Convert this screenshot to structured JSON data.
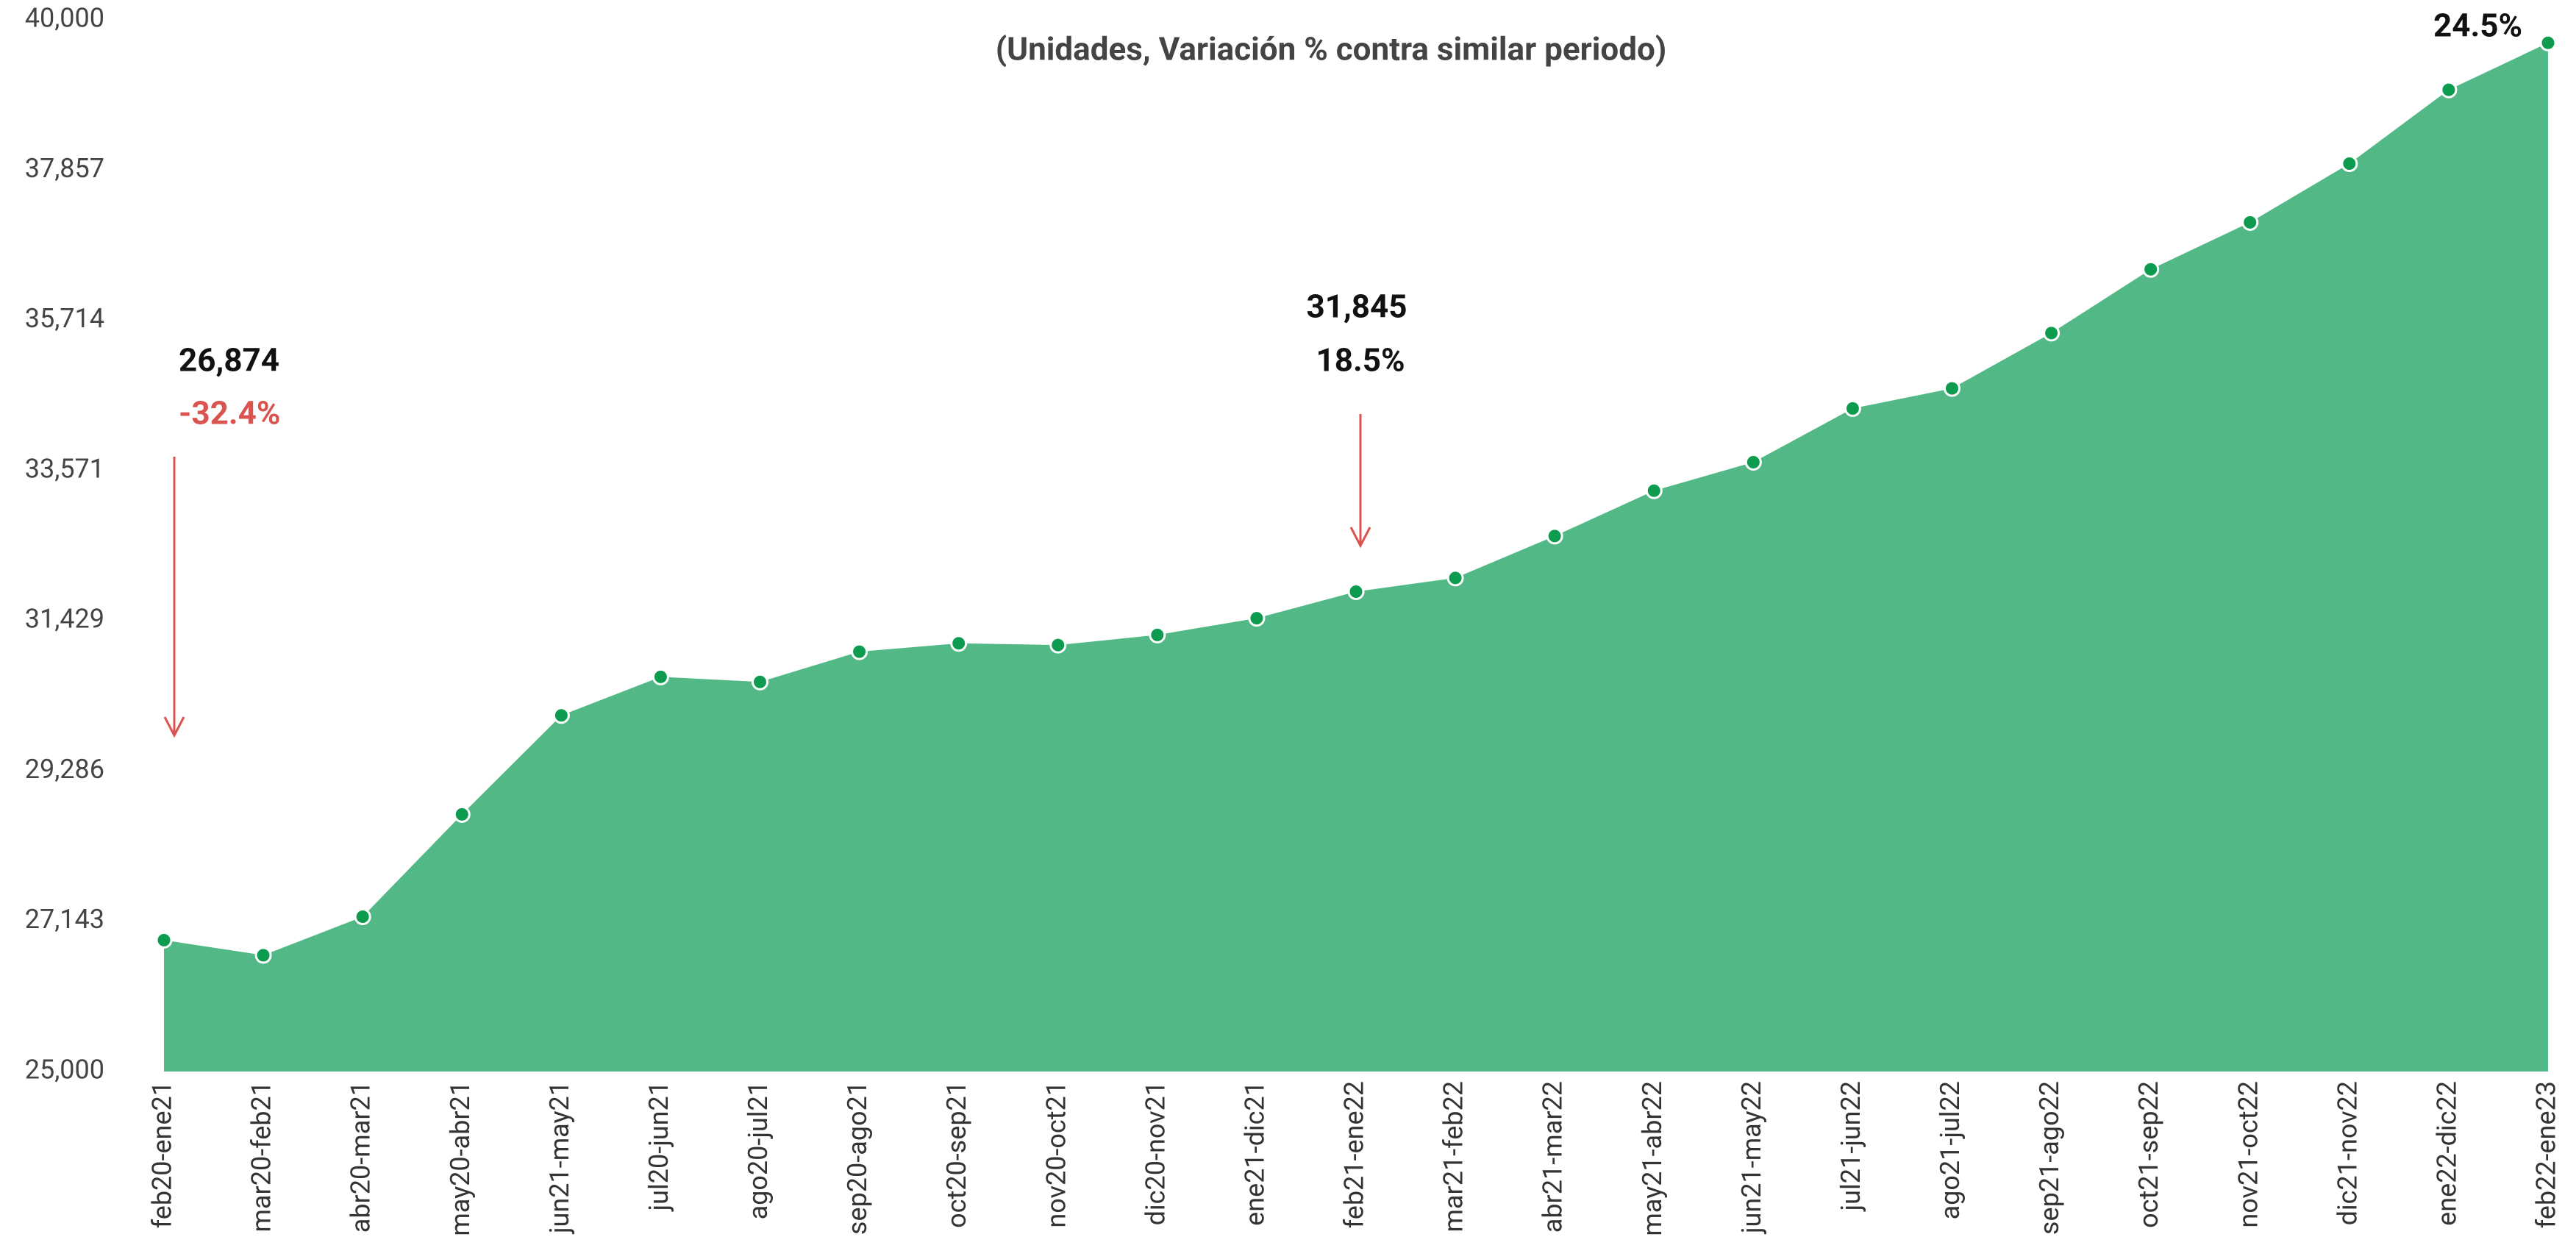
{
  "chart_data": {
    "type": "area",
    "subtitle": "(Unidades, Variación % contra similar periodo)",
    "categories": [
      "feb20-ene21",
      "mar20-feb21",
      "abr20-mar21",
      "may20-abr21",
      "jun21-may21",
      "jul20-jun21",
      "ago20-jul21",
      "sep20-ago21",
      "oct20-sep21",
      "nov20-oct21",
      "dic20-nov21",
      "ene21-dic21",
      "feb21-ene22",
      "mar21-feb22",
      "abr21-mar22",
      "may21-abr22",
      "jun21-may22",
      "jul21-jun22",
      "ago21-jul22",
      "sep21-ago22",
      "oct21-sep22",
      "nov21-oct22",
      "dic21-nov22",
      "ene22-dic22",
      "feb22-ene23"
    ],
    "values": [
      26874,
      26658,
      27208,
      28667,
      30079,
      30629,
      30557,
      30988,
      31107,
      31083,
      31227,
      31466,
      31845,
      32040,
      32638,
      33284,
      33691,
      34457,
      34744,
      35533,
      36442,
      37112,
      37949,
      39002,
      39672
    ],
    "color": "#52b986",
    "marker_color": "#0d9b50",
    "ylim": [
      25000,
      40000
    ],
    "yticks": [
      {
        "value": 25000,
        "label": "25,000"
      },
      {
        "value": 27143,
        "label": "27,143"
      },
      {
        "value": 29286,
        "label": "29,286"
      },
      {
        "value": 31429,
        "label": "31,429"
      },
      {
        "value": 33571,
        "label": "33,571"
      },
      {
        "value": 35714,
        "label": "35,714"
      },
      {
        "value": 37857,
        "label": "37,857"
      },
      {
        "value": 40000,
        "label": "40,000"
      }
    ],
    "annotations": [
      {
        "text": "26,874",
        "color": "#111111"
      },
      {
        "text": "-32.4%",
        "color": "#d9534f"
      },
      {
        "text": "31,845",
        "color": "#111111"
      },
      {
        "text": "18.5%",
        "color": "#111111"
      },
      {
        "text": "24.5%",
        "color": "#111111"
      }
    ]
  }
}
